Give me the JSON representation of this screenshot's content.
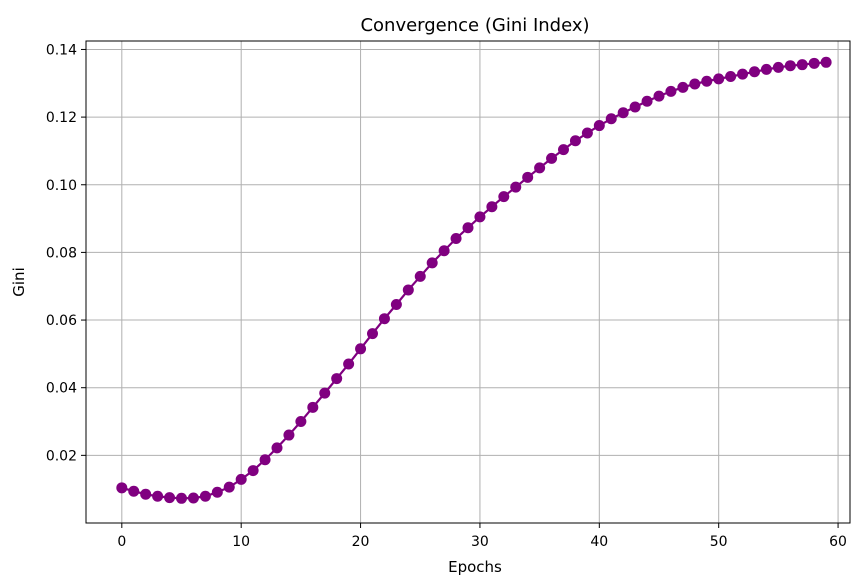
{
  "chart_data": {
    "type": "line",
    "title": "Convergence (Gini Index)",
    "xlabel": "Epochs",
    "ylabel": "Gini",
    "xlim": [
      -3,
      61
    ],
    "ylim": [
      0.0,
      0.1425
    ],
    "xticks": [
      0,
      10,
      20,
      30,
      40,
      50,
      60
    ],
    "xtick_labels": [
      "0",
      "10",
      "20",
      "30",
      "40",
      "50",
      "60"
    ],
    "yticks": [
      0.02,
      0.04,
      0.06,
      0.08,
      0.1,
      0.12,
      0.14
    ],
    "ytick_labels": [
      "0.02",
      "0.04",
      "0.06",
      "0.08",
      "0.10",
      "0.12",
      "0.14"
    ],
    "grid": true,
    "color": "#800080",
    "series": [
      {
        "x": [
          0,
          1,
          2,
          3,
          4,
          5,
          6,
          7,
          8,
          9,
          10,
          11,
          12,
          13,
          14,
          15,
          16,
          17,
          18,
          19,
          20,
          21,
          22,
          23,
          24,
          25,
          26,
          27,
          28,
          29,
          30,
          31,
          32,
          33,
          34,
          35,
          36,
          37,
          38,
          39,
          40,
          41,
          42,
          43,
          44,
          45,
          46,
          47,
          48,
          49,
          50,
          51,
          52,
          53,
          54,
          55,
          56,
          57,
          58,
          59
        ],
        "values": [
          0.0104,
          0.0094,
          0.0085,
          0.0079,
          0.0075,
          0.0073,
          0.0074,
          0.0079,
          0.0091,
          0.0106,
          0.0129,
          0.0155,
          0.0187,
          0.0222,
          0.026,
          0.03,
          0.0342,
          0.0384,
          0.0427,
          0.047,
          0.0515,
          0.056,
          0.0604,
          0.0646,
          0.0689,
          0.0729,
          0.0769,
          0.0805,
          0.0841,
          0.0873,
          0.0905,
          0.0935,
          0.0965,
          0.0993,
          0.1022,
          0.105,
          0.1078,
          0.1104,
          0.113,
          0.1153,
          0.1175,
          0.1195,
          0.1213,
          0.123,
          0.1247,
          0.1262,
          0.1276,
          0.1288,
          0.1298,
          0.1306,
          0.1313,
          0.132,
          0.1327,
          0.1334,
          0.1341,
          0.1347,
          0.1352,
          0.1355,
          0.1359,
          0.1362
        ]
      }
    ]
  }
}
